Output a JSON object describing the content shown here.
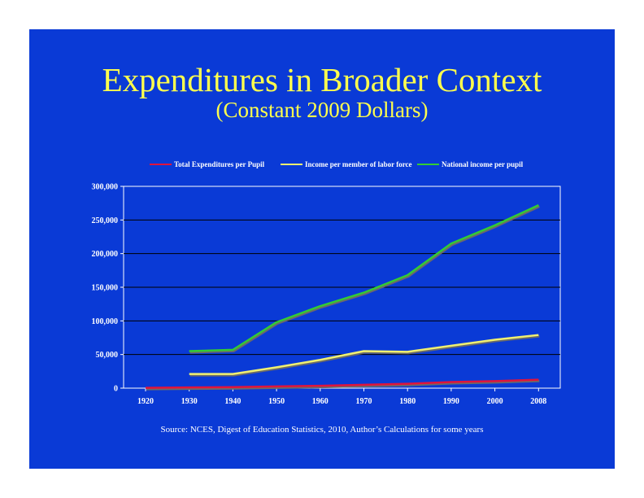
{
  "slide": {
    "background": "#0a3ad6",
    "source_note": "Source: NCES, Digest of Education Statistics, 2010, Author’s Calculations for some years"
  },
  "chart_data": {
    "type": "line",
    "title": "Expenditures in Broader Context",
    "subtitle": "(Constant 2009 Dollars)",
    "xlabel": "",
    "ylabel": "",
    "ylim": [
      0,
      300000
    ],
    "yticks": [
      0,
      50000,
      100000,
      150000,
      200000,
      250000,
      300000
    ],
    "ytick_labels": [
      "0",
      "50,000",
      "100,000",
      "150,000",
      "200,000",
      "250,000",
      "300,000"
    ],
    "categories": [
      "1920",
      "1930",
      "1940",
      "1950",
      "1960",
      "1970",
      "1980",
      "1990",
      "2000",
      "2008"
    ],
    "grid": true,
    "legend_position": "top",
    "series": [
      {
        "name": "Total Expenditures per Pupil",
        "color": "#e0143c",
        "values": [
          500,
          1000,
          1500,
          2500,
          3500,
          5000,
          6500,
          9000,
          10500,
          12500
        ]
      },
      {
        "name": "Income per member of labor force",
        "color": "#f0f070",
        "values": [
          null,
          21000,
          21000,
          31000,
          42000,
          55000,
          54000,
          63000,
          72000,
          79000
        ]
      },
      {
        "name": "National income per pupil",
        "color": "#33cc33",
        "values": [
          null,
          55000,
          57000,
          98000,
          122000,
          142000,
          168000,
          215000,
          242000,
          272000
        ]
      }
    ]
  }
}
